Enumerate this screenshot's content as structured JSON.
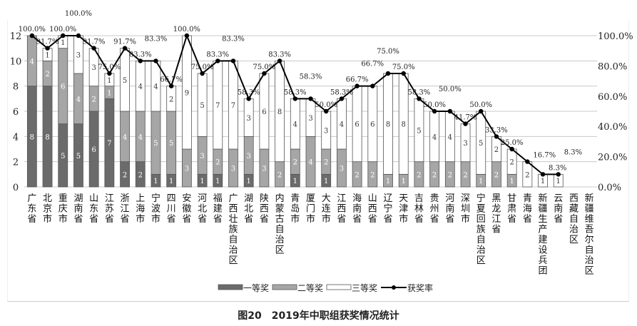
{
  "chart_data": {
    "type": "bar+line",
    "stacked": true,
    "categories": [
      "广东省",
      "北京市",
      "重庆市",
      "湖南省",
      "山东省",
      "江苏省",
      "浙江省",
      "上海市",
      "宁波市",
      "四川省",
      "安徽省",
      "河北省",
      "福建省",
      "广西壮族自治区",
      "湖北省",
      "陕西省",
      "内蒙古自治区",
      "青岛市",
      "厦门市",
      "大连市",
      "江西省",
      "海南省",
      "山西省",
      "辽宁省",
      "天津市",
      "吉林省",
      "贵州省",
      "河南省",
      "深圳市",
      "宁夏回族自治区",
      "黑龙江省",
      "甘肃省",
      "青海省",
      "新疆生产建设兵团",
      "云南省",
      "西藏自治区",
      "新疆维吾尔自治区"
    ],
    "series": [
      {
        "name": "一等奖",
        "type": "bar",
        "color": "#6b6b6b",
        "values": [
          8,
          8,
          5,
          5,
          6,
          7,
          2,
          2,
          1,
          1,
          0,
          1,
          1,
          0,
          1,
          0,
          0,
          1,
          0,
          1,
          0,
          0,
          0,
          0,
          0,
          0,
          0,
          0,
          0,
          0,
          0,
          0,
          0,
          0,
          0,
          0,
          0
        ]
      },
      {
        "name": "二等奖",
        "type": "bar",
        "color": "#a6a6a6",
        "values": [
          4,
          2,
          6,
          4,
          2,
          1,
          4,
          4,
          5,
          5,
          3,
          3,
          2,
          3,
          3,
          3,
          2,
          2,
          4,
          2,
          3,
          2,
          2,
          1,
          1,
          2,
          2,
          2,
          2,
          1,
          2,
          1,
          0,
          0,
          0,
          0,
          0
        ]
      },
      {
        "name": "三等奖",
        "type": "bar",
        "color": "#ffffff",
        "values": [
          0,
          1,
          1,
          3,
          3,
          1,
          5,
          4,
          4,
          2,
          9,
          5,
          7,
          7,
          3,
          6,
          8,
          4,
          3,
          3,
          4,
          6,
          6,
          8,
          8,
          5,
          4,
          4,
          3,
          5,
          2,
          2,
          2,
          1,
          1,
          0,
          0
        ]
      },
      {
        "name": "获奖率",
        "type": "line",
        "axis": "right",
        "color": "#000000",
        "values": [
          100.0,
          91.7,
          100.0,
          100.0,
          91.7,
          75.0,
          91.7,
          83.3,
          83.3,
          66.7,
          100.0,
          75.0,
          83.3,
          83.3,
          58.3,
          75.0,
          83.3,
          58.3,
          58.3,
          50.0,
          58.3,
          66.7,
          66.7,
          75.0,
          75.0,
          58.3,
          50.0,
          50.0,
          41.7,
          50.0,
          33.3,
          25.0,
          16.7,
          8.3,
          8.3,
          null,
          null
        ]
      }
    ],
    "y_left": {
      "min": 0,
      "max": 12,
      "ticks": [
        "0",
        "2",
        "4",
        "6",
        "8",
        "10",
        "12"
      ]
    },
    "y_right": {
      "min": 0,
      "max": 100,
      "ticks": [
        "0.0%",
        "20.0%",
        "40.0%",
        "60.0%",
        "80.0%",
        "100.0%"
      ]
    },
    "grid": true,
    "legend": "bottom"
  },
  "caption": "图20　2019年中职组获奖情况统计"
}
